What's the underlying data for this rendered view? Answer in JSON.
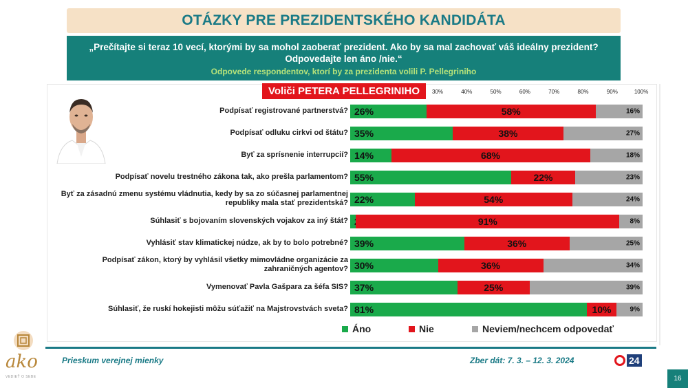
{
  "title": "OTÁZKY PRE PREZIDENTSKÉHO KANDIDÁTA",
  "question": "„Prečítajte si teraz 10 vecí, ktorými by sa mohol zaoberať prezident. Ako by sa mal zachovať váš ideálny prezident? Odpovedajte len áno /nie.“",
  "subtitle": "Odpovede respondentov, ktorí by za prezidenta volili P. Pellegriniho",
  "chart_header": "Voliči PETERA PELLEGRINIHO",
  "footer": {
    "left": "Prieskum verejnej mienky",
    "right": "Zber dát: 7. 3. – 12. 3. 2024",
    "page": "16",
    "logo_text": "ako",
    "logo_sub": "VEDIEŤ O SEBE",
    "tv_logo": "24"
  },
  "colors": {
    "yes": "#1aaa4b",
    "no": "#e2151c",
    "dk": "#a6a6a6",
    "teal": "#16807a"
  },
  "chart_data": {
    "type": "bar",
    "orientation": "horizontal",
    "stacked": true,
    "xlim": [
      0,
      100
    ],
    "tick_labels": [
      "30%",
      "40%",
      "50%",
      "60%",
      "70%",
      "80%",
      "90%",
      "100%"
    ],
    "tick_values": [
      30,
      40,
      50,
      60,
      70,
      80,
      90,
      100
    ],
    "categories": [
      "Podpísať registrované partnerstvá?",
      "Podpísať odluku cirkvi od štátu?",
      "Byť za sprísnenie interrupcií?",
      "Podpísať novelu trestného zákona tak, ako prešla parlamentom?",
      "Byť za zásadnú zmenu systému vládnutia, kedy by sa zo súčasnej  parlamentnej republiky mala stať prezidentská?",
      "Súhlasiť s bojovaním slovenských vojakov za iný štát?",
      "Vyhlásiť stav klimatickej núdze, ak by to bolo potrebné?",
      "Podpísať zákon, ktorý by vyhlásil všetky mimovládne organizácie za zahraničných agentov?",
      "Vymenovať Pavla Gašpara za šéfa SIS?",
      "Súhlasiť, že ruskí hokejisti môžu súťažiť na Majstrovstvách sveta?"
    ],
    "series": [
      {
        "name": "Áno",
        "values": [
          26,
          35,
          14,
          55,
          22,
          2,
          39,
          30,
          37,
          81
        ]
      },
      {
        "name": "Nie",
        "values": [
          58,
          38,
          68,
          22,
          54,
          91,
          36,
          36,
          25,
          10
        ]
      },
      {
        "name": "Neviem/nechcem odpovedať",
        "values": [
          16,
          27,
          18,
          23,
          24,
          8,
          25,
          34,
          39,
          9
        ]
      }
    ]
  }
}
